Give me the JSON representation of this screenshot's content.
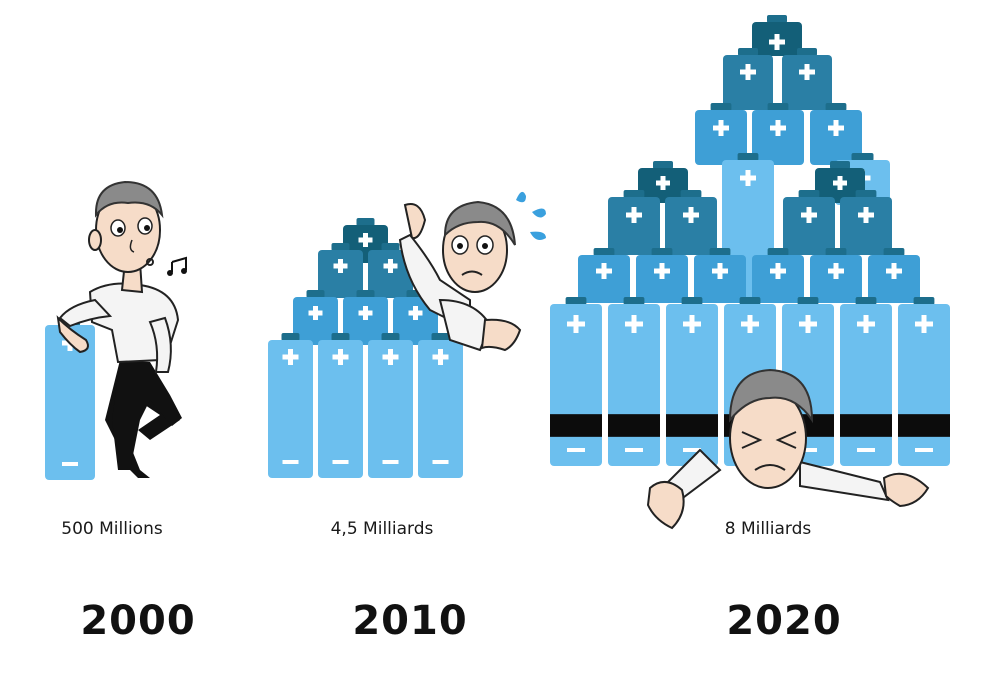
{
  "colors": {
    "battery_light": "#6cbfee",
    "battery_mid": "#3e9fd6",
    "battery_dark": "#2a7fa5",
    "battery_darkest": "#135f78",
    "terminal": "#1d6e8c"
  },
  "panels": [
    {
      "year": "2000",
      "caption": "500 Millions"
    },
    {
      "year": "2010",
      "caption": "4,5 Milliards"
    },
    {
      "year": "2020",
      "caption": "8 Milliards"
    }
  ],
  "figures": [
    {
      "pose": "leaning-whistling",
      "icon": "music-note-icon"
    },
    {
      "pose": "peeking-alarmed",
      "icon": "sweat-drops-icon"
    },
    {
      "pose": "crushed-under-pile",
      "icon": "none"
    }
  ]
}
